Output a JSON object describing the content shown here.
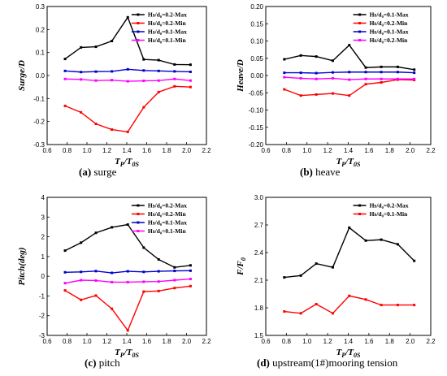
{
  "chart_data": [
    {
      "type": "line",
      "xlabel": "TP/T0S",
      "ylabel": "Surge/D",
      "xlim": [
        0.6,
        2.2
      ],
      "ylim": [
        -0.3,
        0.3
      ],
      "xticks": [
        "0.6",
        "0.8",
        "1.0",
        "1.2",
        "1.4",
        "1.6",
        "1.8",
        "2.0",
        "2.2"
      ],
      "yticks": [
        "-0.3",
        "-0.2",
        "-0.1",
        "0.0",
        "0.1",
        "0.2",
        "0.3"
      ],
      "legend_position": "top-right",
      "x": [
        0.78,
        0.94,
        1.09,
        1.25,
        1.41,
        1.57,
        1.72,
        1.88,
        2.04
      ],
      "series": [
        {
          "name": "Hs/d₀=0.2-Max",
          "color": "#000000",
          "values": [
            0.072,
            0.122,
            0.125,
            0.15,
            0.253,
            0.07,
            0.067,
            0.048,
            0.047
          ]
        },
        {
          "name": "Hs/d₀=0.2-Min",
          "color": "#ff0000",
          "values": [
            -0.132,
            -0.16,
            -0.21,
            -0.235,
            -0.245,
            -0.138,
            -0.072,
            -0.047,
            -0.05
          ]
        },
        {
          "name": "Hs/d₀=0.1-Max",
          "color": "#0000cc",
          "values": [
            0.02,
            0.015,
            0.017,
            0.018,
            0.027,
            0.022,
            0.02,
            0.018,
            0.016
          ]
        },
        {
          "name": "Hs/d₀=0.1-Min",
          "color": "#ff00ff",
          "values": [
            -0.015,
            -0.017,
            -0.022,
            -0.02,
            -0.025,
            -0.023,
            -0.022,
            -0.015,
            -0.022
          ]
        }
      ],
      "caption_letter": "(a)",
      "caption_text": " surge"
    },
    {
      "type": "line",
      "xlabel": "TP/T0S",
      "ylabel": "Heave/D",
      "xlim": [
        0.6,
        2.2
      ],
      "ylim": [
        -0.2,
        0.2
      ],
      "xticks": [
        "0.6",
        "0.8",
        "1.0",
        "1.2",
        "1.4",
        "1.6",
        "1.8",
        "2.0",
        "2.2"
      ],
      "yticks": [
        "-0.20",
        "-0.15",
        "-0.10",
        "-0.05",
        "0.00",
        "0.05",
        "0.10",
        "0.15",
        "0.20"
      ],
      "legend_position": "top-right",
      "x": [
        0.78,
        0.94,
        1.09,
        1.25,
        1.41,
        1.57,
        1.72,
        1.88,
        2.04
      ],
      "series": [
        {
          "name": "Hs/d₀=0.1-Max",
          "color": "#000000",
          "values": [
            0.047,
            0.058,
            0.055,
            0.043,
            0.088,
            0.023,
            0.025,
            0.025,
            0.017
          ]
        },
        {
          "name": "Hs/d₀=0.2-Min",
          "color": "#ff0000",
          "values": [
            -0.04,
            -0.058,
            -0.055,
            -0.052,
            -0.058,
            -0.025,
            -0.02,
            -0.012,
            -0.013
          ]
        },
        {
          "name": "Hs/d₀=0.1-Max",
          "color": "#0000cc",
          "values": [
            0.008,
            0.008,
            0.007,
            0.009,
            0.01,
            0.01,
            0.01,
            0.01,
            0.008
          ]
        },
        {
          "name": "Hs/d₀=0.2-Min",
          "color": "#ff00ff",
          "values": [
            -0.005,
            -0.008,
            -0.01,
            -0.008,
            -0.012,
            -0.01,
            -0.01,
            -0.01,
            -0.01
          ]
        }
      ],
      "caption_letter": "(b)",
      "caption_text": " heave"
    },
    {
      "type": "line",
      "xlabel": "TP/T0S",
      "ylabel": "Pitch(deg)",
      "xlim": [
        0.6,
        2.2
      ],
      "ylim": [
        -3,
        4
      ],
      "xticks": [
        "0.6",
        "0.8",
        "1.0",
        "1.2",
        "1.4",
        "1.6",
        "1.8",
        "2.0",
        "2.2"
      ],
      "yticks": [
        "-3",
        "-2",
        "-1",
        "0",
        "1",
        "2",
        "3",
        "4"
      ],
      "legend_position": "top-right",
      "x": [
        0.78,
        0.94,
        1.09,
        1.25,
        1.41,
        1.57,
        1.72,
        1.88,
        2.04
      ],
      "series": [
        {
          "name": "Hs/d₀=0.2-Max",
          "color": "#000000",
          "values": [
            1.3,
            1.7,
            2.2,
            2.48,
            2.62,
            1.45,
            0.85,
            0.45,
            0.55
          ]
        },
        {
          "name": "Hs/d₀=0.2-Min",
          "color": "#ff0000",
          "values": [
            -0.72,
            -1.2,
            -0.98,
            -1.65,
            -2.75,
            -0.78,
            -0.75,
            -0.6,
            -0.5
          ]
        },
        {
          "name": "Hs/d₀=0.1-Max",
          "color": "#0000cc",
          "values": [
            0.2,
            0.22,
            0.26,
            0.17,
            0.25,
            0.22,
            0.25,
            0.27,
            0.28
          ]
        },
        {
          "name": "Hs/d₀=0.1-Min",
          "color": "#ff00ff",
          "values": [
            -0.35,
            -0.2,
            -0.22,
            -0.3,
            -0.3,
            -0.28,
            -0.27,
            -0.2,
            -0.14
          ]
        }
      ],
      "caption_letter": "(c)",
      "caption_text": " pitch"
    },
    {
      "type": "line",
      "xlabel": "TP/T0S",
      "ylabel": "F/F0",
      "xlim": [
        0.6,
        2.2
      ],
      "ylim": [
        1.5,
        3.0
      ],
      "xticks": [
        "0.6",
        "0.8",
        "1.0",
        "1.2",
        "1.4",
        "1.6",
        "1.8",
        "2.0",
        "2.2"
      ],
      "yticks": [
        "1.5",
        "1.8",
        "2.1",
        "2.4",
        "2.7",
        "3.0"
      ],
      "legend_position": "top-right",
      "x": [
        0.78,
        0.94,
        1.09,
        1.25,
        1.41,
        1.57,
        1.72,
        1.88,
        2.04
      ],
      "series": [
        {
          "name": "Hs/d₀=0.2-Max",
          "color": "#000000",
          "values": [
            2.13,
            2.15,
            2.28,
            2.24,
            2.67,
            2.53,
            2.54,
            2.49,
            2.31
          ]
        },
        {
          "name": "Hs/d₀=0.1-Min",
          "color": "#ff0000",
          "values": [
            1.76,
            1.74,
            1.84,
            1.74,
            1.93,
            1.89,
            1.83,
            1.83,
            1.83
          ]
        }
      ],
      "caption_letter": "(d)",
      "caption_text": " upstream(1#)mooring tension"
    }
  ]
}
